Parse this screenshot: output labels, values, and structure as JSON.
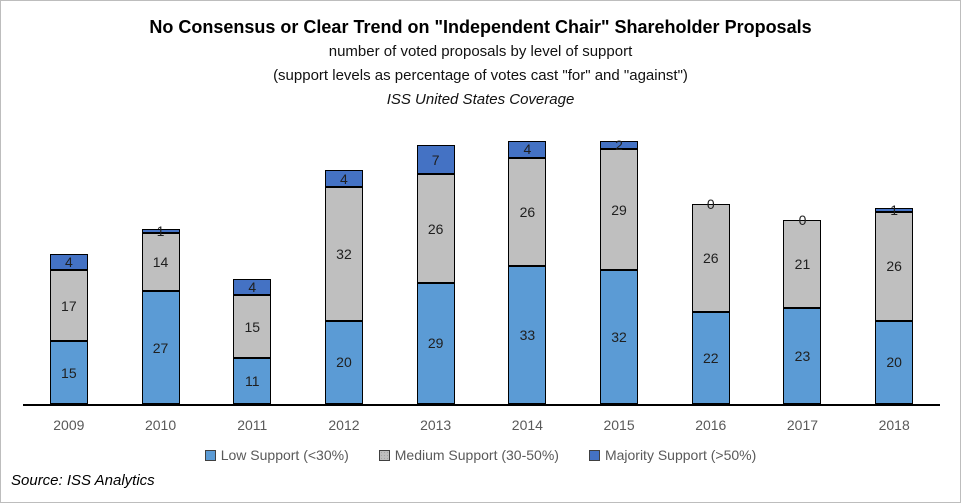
{
  "header": {
    "title": "No Consensus or Clear Trend on \"Independent Chair\" Shareholder Proposals",
    "subtitle1": "number of voted proposals by level of support",
    "subtitle2": "(support levels as percentage of votes cast \"for\" and \"against\")",
    "subtitle3": "ISS United States Coverage"
  },
  "chart_data": {
    "type": "bar",
    "stacked": true,
    "title": "No Consensus or Clear Trend on \"Independent Chair\" Shareholder Proposals",
    "subtitle": "number of voted proposals by level of support (support levels as percentage of votes cast \"for\" and \"against\") ISS United States Coverage",
    "categories": [
      "2009",
      "2010",
      "2011",
      "2012",
      "2013",
      "2014",
      "2015",
      "2016",
      "2017",
      "2018"
    ],
    "series": [
      {
        "name": "Low Support (<30%)",
        "color": "#5B9BD5",
        "values": [
          15,
          27,
          11,
          20,
          29,
          33,
          32,
          22,
          23,
          20
        ]
      },
      {
        "name": "Medium Support (30-50%)",
        "color": "#BFBFBF",
        "values": [
          17,
          14,
          15,
          32,
          26,
          26,
          29,
          26,
          21,
          26
        ]
      },
      {
        "name": "Majority Support (>50%)",
        "color": "#4472C4",
        "values": [
          4,
          1,
          4,
          4,
          7,
          4,
          2,
          0,
          0,
          1
        ]
      }
    ],
    "totals": [
      36,
      42,
      30,
      56,
      62,
      63,
      63,
      48,
      44,
      47
    ],
    "ylim": [
      0,
      63
    ],
    "data_labels": true,
    "grid": false,
    "legend_position": "bottom",
    "xlabel": "",
    "ylabel": ""
  },
  "footer": {
    "source": "Source: ISS Analytics"
  }
}
